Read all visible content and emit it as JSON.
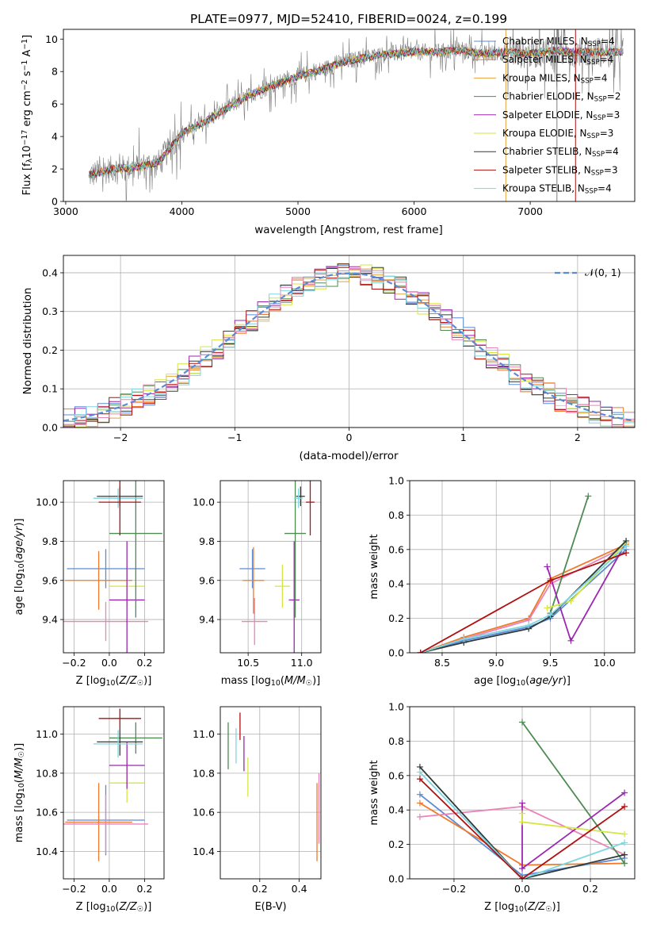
{
  "figure_title": "PLATE=0977, MJD=52410, FIBERID=0024, z=0.199",
  "colors": {
    "Chabrier MILES": "#5b8bd6",
    "Salpeter MILES": "#f07a2a",
    "Kroupa MILES": "#e7a23c",
    "Chabrier ELODIE": "#4e8a52",
    "Salpeter ELODIE": "#9b27b0",
    "Kroupa ELODIE": "#d6e640",
    "Chabrier STELIB": "#2f3b3b",
    "Salpeter STELIB": "#b01010",
    "Kroupa STELIB": "#7fd6e0",
    "pink": "#e983b8",
    "data": "#7f7f7f"
  },
  "chart_data": [
    {
      "id": "spectrum",
      "type": "line",
      "title": "PLATE=0977, MJD=52410, FIBERID=0024, z=0.199",
      "xlabel": "wavelength [Angstrom, rest frame]",
      "ylabel_parts": [
        "Flux [f",
        "λ",
        "10",
        "−17",
        " erg cm",
        "−2",
        " s",
        "−1",
        " A",
        "−1",
        "]"
      ],
      "xlim": [
        2980,
        7900
      ],
      "ylim": [
        0,
        10.6
      ],
      "xticks": [
        3000,
        4000,
        5000,
        6000,
        7000
      ],
      "yticks": [
        0,
        2,
        4,
        6,
        8,
        10
      ],
      "legend_position": "top-right",
      "legend": [
        {
          "name": "Chabrier MILES",
          "nssp": "4"
        },
        {
          "name": "Salpeter MILES",
          "nssp": "4"
        },
        {
          "name": "Kroupa MILES",
          "nssp": "4"
        },
        {
          "name": "Chabrier ELODIE",
          "nssp": "2"
        },
        {
          "name": "Salpeter ELODIE",
          "nssp": "3"
        },
        {
          "name": "Kroupa ELODIE",
          "nssp": "3"
        },
        {
          "name": "Chabrier STELIB",
          "nssp": "4"
        },
        {
          "name": "Salpeter STELIB",
          "nssp": "3"
        },
        {
          "name": "Kroupa STELIB",
          "nssp": "4"
        }
      ],
      "legend_prefix": ", N",
      "legend_sub": "SSP",
      "continuum": {
        "x": [
          3200,
          3400,
          3600,
          3800,
          4000,
          4200,
          4400,
          4600,
          4800,
          5000,
          5200,
          5400,
          5600,
          5800,
          6000,
          6200,
          6400,
          6600,
          6800,
          7000,
          7200,
          7400,
          7600
        ],
        "y": [
          1.6,
          2.0,
          2.1,
          2.4,
          4.2,
          4.9,
          5.8,
          6.6,
          7.2,
          7.7,
          8.1,
          8.6,
          8.9,
          9.1,
          9.2,
          9.2,
          9.3,
          9.1,
          9.2,
          9.1,
          9.3,
          9.2,
          9.2
        ]
      },
      "model_x_range": [
        3200,
        7800
      ],
      "data_x_range": [
        3200,
        7800
      ]
    },
    {
      "id": "residuals",
      "type": "histogram",
      "xlabel": "(data-model)/error",
      "ylabel": "Normed distribution",
      "xlim": [
        -2.5,
        2.5
      ],
      "ylim": [
        0,
        0.445
      ],
      "xticks": [
        -2,
        -1,
        0,
        1,
        2
      ],
      "xticklabels": [
        "−2",
        "−1",
        "0",
        "1",
        "2"
      ],
      "yticks": [
        0.0,
        0.1,
        0.2,
        0.3,
        0.4
      ],
      "yticklabels": [
        "0.0",
        "0.1",
        "0.2",
        "0.3",
        "0.4"
      ],
      "grid": true,
      "bin_width": 0.1,
      "reference": {
        "name": "𝒩(0, 1)",
        "mean": 0,
        "sigma": 1,
        "style": "dashed"
      },
      "legend_position": "top-right"
    },
    {
      "id": "age-vs-Z",
      "type": "errorbar",
      "xlabel": "Z [log10(Z/Z☉)]",
      "ylabel": "age  [log10(age/yr)]",
      "xlim": [
        -0.26,
        0.31
      ],
      "ylim": [
        9.23,
        10.11
      ],
      "xticks": [
        -0.2,
        0.0,
        0.2
      ],
      "xticklabels": [
        "−0.2",
        "0.0",
        "0.2"
      ],
      "yticks": [
        9.4,
        9.6,
        9.8,
        10.0
      ],
      "yticklabels": [
        "9.4",
        "9.6",
        "9.8",
        "10.0"
      ],
      "series": [
        {
          "color": "Chabrier MILES",
          "x": -0.02,
          "xerr": 0.22,
          "y": 9.66,
          "yerr": 0.1
        },
        {
          "color": "Salpeter MILES",
          "x": -0.06,
          "xerr": 0.19,
          "y": 9.6,
          "yerr": 0.15
        },
        {
          "color": "pink",
          "x": -0.02,
          "xerr": 0.24,
          "y": 9.39,
          "yerr": 0.1
        },
        {
          "color": "Kroupa ELODIE",
          "x": 0.1,
          "xerr": 0.1,
          "y": 9.57,
          "yerr": 0.1
        },
        {
          "color": "Salpeter ELODIE",
          "x": 0.1,
          "xerr": 0.1,
          "y": 9.5,
          "yerr": 0.3
        },
        {
          "color": "Chabrier ELODIE",
          "x": 0.15,
          "xerr": 0.15,
          "y": 9.84,
          "yerr": 0.43
        },
        {
          "color": "Chabrier STELIB",
          "x": 0.06,
          "xerr": 0.13,
          "y": 10.03,
          "yerr": 0.05
        },
        {
          "color": "Kroupa STELIB",
          "x": 0.05,
          "xerr": 0.14,
          "y": 10.02,
          "yerr": 0.05
        },
        {
          "color": "Salpeter STELIB",
          "x": 0.06,
          "xerr": 0.12,
          "y": 10.0,
          "yerr": 0.17
        }
      ]
    },
    {
      "id": "age-vs-mass",
      "type": "errorbar",
      "xlabel": "mass [log10(M/M☉)]",
      "ylabel": "",
      "xlim": [
        10.24,
        11.18
      ],
      "ylim": [
        9.23,
        10.11
      ],
      "xticks": [
        10.5,
        11.0
      ],
      "xticklabels": [
        "10.5",
        "11.0"
      ],
      "yticks": [
        9.4,
        9.6,
        9.8,
        10.0
      ],
      "yticklabels": [
        "9.4",
        "9.6",
        "9.8",
        "10.0"
      ],
      "series": [
        {
          "color": "Chabrier MILES",
          "x": 10.54,
          "xerr": 0.12,
          "y": 9.66,
          "yerr": 0.1
        },
        {
          "color": "Salpeter MILES",
          "x": 10.55,
          "xerr": 0.1,
          "y": 9.6,
          "yerr": 0.17
        },
        {
          "color": "pink",
          "x": 10.56,
          "xerr": 0.12,
          "y": 9.39,
          "yerr": 0.12
        },
        {
          "color": "Kroupa ELODIE",
          "x": 10.82,
          "xerr": 0.07,
          "y": 9.57,
          "yerr": 0.11
        },
        {
          "color": "Salpeter ELODIE",
          "x": 10.93,
          "xerr": 0.05,
          "y": 9.5,
          "yerr": 0.3
        },
        {
          "color": "Chabrier ELODIE",
          "x": 10.94,
          "xerr": 0.1,
          "y": 9.84,
          "yerr": 0.43
        },
        {
          "color": "Chabrier STELIB",
          "x": 10.99,
          "xerr": 0.04,
          "y": 10.03,
          "yerr": 0.05
        },
        {
          "color": "Kroupa STELIB",
          "x": 10.97,
          "xerr": 0.04,
          "y": 10.02,
          "yerr": 0.05
        },
        {
          "color": "Salpeter STELIB",
          "x": 11.08,
          "xerr": 0.04,
          "y": 10.0,
          "yerr": 0.17
        }
      ]
    },
    {
      "id": "mass-weight-vs-age",
      "type": "line",
      "xlabel": "age  [log10(age/yr)]",
      "ylabel": "mass weight",
      "xlim": [
        8.2,
        10.28
      ],
      "ylim": [
        0,
        1
      ],
      "xticks": [
        8.5,
        9.0,
        9.5,
        10.0
      ],
      "xticklabels": [
        "8.5",
        "9.0",
        "9.5",
        "10.0"
      ],
      "yticks": [
        0.0,
        0.2,
        0.4,
        0.6,
        0.8,
        1.0
      ],
      "yticklabels": [
        "0.0",
        "0.2",
        "0.4",
        "0.6",
        "0.8",
        "1.0"
      ],
      "series": [
        {
          "color": "Chabrier MILES",
          "x": [
            8.3,
            8.7,
            9.3,
            9.5,
            10.2
          ],
          "y": [
            0.0,
            0.07,
            0.15,
            0.2,
            0.6
          ]
        },
        {
          "color": "Salpeter MILES",
          "x": [
            8.3,
            8.7,
            9.3,
            9.5,
            10.2
          ],
          "y": [
            0.0,
            0.09,
            0.2,
            0.43,
            0.63
          ]
        },
        {
          "color": "pink",
          "x": [
            8.3,
            8.7,
            9.3,
            9.5,
            10.2
          ],
          "y": [
            0.0,
            0.08,
            0.19,
            0.4,
            0.62
          ]
        },
        {
          "color": "Chabrier ELODIE",
          "x": [
            9.5,
            9.85
          ],
          "y": [
            0.23,
            0.91
          ]
        },
        {
          "color": "Salpeter ELODIE",
          "x": [
            9.47,
            9.69,
            10.2
          ],
          "y": [
            0.5,
            0.07,
            0.64
          ]
        },
        {
          "color": "Kroupa ELODIE",
          "x": [
            9.47,
            9.69,
            10.2
          ],
          "y": [
            0.26,
            0.3,
            0.64
          ]
        },
        {
          "color": "Chabrier STELIB",
          "x": [
            8.3,
            8.7,
            9.3,
            9.5,
            10.2
          ],
          "y": [
            0.0,
            0.06,
            0.14,
            0.21,
            0.65
          ]
        },
        {
          "color": "Kroupa STELIB",
          "x": [
            8.3,
            8.7,
            9.3,
            9.5,
            10.2
          ],
          "y": [
            0.0,
            0.08,
            0.16,
            0.22,
            0.62
          ]
        },
        {
          "color": "Salpeter STELIB",
          "x": [
            8.3,
            9.5,
            10.2
          ],
          "y": [
            0.0,
            0.42,
            0.58
          ]
        }
      ]
    },
    {
      "id": "mass-vs-Z",
      "type": "errorbar",
      "xlabel": "Z [log10(Z/Z☉)]",
      "ylabel": "mass [log10(M/M☉)]",
      "xlim": [
        -0.26,
        0.31
      ],
      "ylim": [
        10.26,
        11.14
      ],
      "xticks": [
        -0.2,
        0.0,
        0.2
      ],
      "xticklabels": [
        "−0.2",
        "0.0",
        "0.2"
      ],
      "yticks": [
        10.4,
        10.6,
        10.8,
        11.0
      ],
      "yticklabels": [
        "10.4",
        "10.6",
        "10.8",
        "11.0"
      ],
      "series": [
        {
          "color": "Chabrier MILES",
          "x": -0.02,
          "xerr": 0.22,
          "y": 10.56,
          "yerr": 0.18
        },
        {
          "color": "Salpeter MILES",
          "x": -0.06,
          "xerr": 0.19,
          "y": 10.55,
          "yerr": 0.2
        },
        {
          "color": "pink",
          "x": -0.02,
          "xerr": 0.24,
          "y": 10.54,
          "yerr": 0.15
        },
        {
          "color": "Kroupa ELODIE",
          "x": 0.1,
          "xerr": 0.1,
          "y": 10.75,
          "yerr": 0.1
        },
        {
          "color": "Salpeter ELODIE",
          "x": 0.1,
          "xerr": 0.1,
          "y": 10.84,
          "yerr": 0.12
        },
        {
          "color": "Chabrier ELODIE",
          "x": 0.15,
          "xerr": 0.15,
          "y": 10.98,
          "yerr": 0.08
        },
        {
          "color": "Chabrier STELIB",
          "x": 0.06,
          "xerr": 0.13,
          "y": 10.96,
          "yerr": 0.07
        },
        {
          "color": "Kroupa STELIB",
          "x": 0.05,
          "xerr": 0.14,
          "y": 10.95,
          "yerr": 0.07
        },
        {
          "color": "Salpeter STELIB",
          "x": 0.06,
          "xerr": 0.12,
          "y": 11.08,
          "yerr": 0.05
        }
      ]
    },
    {
      "id": "mass-vs-ebv",
      "type": "errorbar",
      "xlabel": "E(B-V)",
      "ylabel": "",
      "xlim": [
        0.0,
        0.51
      ],
      "ylim": [
        10.26,
        11.14
      ],
      "xticks": [
        0.2,
        0.4
      ],
      "xticklabels": [
        "0.2",
        "0.4"
      ],
      "yticks": [
        10.4,
        10.6,
        10.8,
        11.0
      ],
      "yticklabels": [
        "10.4",
        "10.6",
        "10.8",
        "11.0"
      ],
      "series": [
        {
          "color": "Chabrier ELODIE",
          "x": 0.04,
          "xerr": 0.0,
          "y": 10.94,
          "yerr": 0.12
        },
        {
          "color": "Kroupa STELIB",
          "x": 0.08,
          "xerr": 0.0,
          "y": 10.94,
          "yerr": 0.09
        },
        {
          "color": "Salpeter STELIB",
          "x": 0.1,
          "xerr": 0.0,
          "y": 11.04,
          "yerr": 0.07
        },
        {
          "color": "Salpeter ELODIE",
          "x": 0.12,
          "xerr": 0.0,
          "y": 10.9,
          "yerr": 0.09
        },
        {
          "color": "Kroupa ELODIE",
          "x": 0.14,
          "xerr": 0.0,
          "y": 10.78,
          "yerr": 0.1
        },
        {
          "color": "Salpeter MILES",
          "x": 0.49,
          "xerr": 0.0,
          "y": 10.55,
          "yerr": 0.2
        },
        {
          "color": "pink",
          "x": 0.5,
          "xerr": 0.0,
          "y": 10.62,
          "yerr": 0.18
        }
      ]
    },
    {
      "id": "mass-weight-vs-Z",
      "type": "line",
      "xlabel": "Z [log10(Z/Z☉)]",
      "ylabel": "mass weight",
      "xlim": [
        -0.33,
        0.33
      ],
      "ylim": [
        0,
        1
      ],
      "xticks": [
        -0.2,
        0.0,
        0.2
      ],
      "xticklabels": [
        "−0.2",
        "0.0",
        "0.2"
      ],
      "yticks": [
        0.0,
        0.2,
        0.4,
        0.6,
        0.8,
        1.0
      ],
      "yticklabels": [
        "0.0",
        "0.2",
        "0.4",
        "0.6",
        "0.8",
        "1.0"
      ],
      "series": [
        {
          "color": "Chabrier MILES",
          "x": [
            -0.3,
            0.0,
            0.3
          ],
          "y": [
            0.49,
            0.02,
            0.12
          ]
        },
        {
          "color": "Salpeter MILES",
          "x": [
            -0.3,
            0.0,
            0.3
          ],
          "y": [
            0.44,
            0.08,
            0.09
          ]
        },
        {
          "color": "pink",
          "x": [
            -0.3,
            0.0,
            0.3
          ],
          "y": [
            0.36,
            0.42,
            0.14
          ]
        },
        {
          "color": "Chabrier ELODIE",
          "x": [
            0.0,
            0.3
          ],
          "y": [
            0.91,
            0.09
          ]
        },
        {
          "color": "Salpeter ELODIE",
          "x": [
            0.0,
            0.0,
            0.3
          ],
          "y": [
            0.44,
            0.06,
            0.5
          ]
        },
        {
          "color": "Kroupa ELODIE",
          "x": [
            0.0,
            0.0,
            0.3
          ],
          "y": [
            0.38,
            0.33,
            0.26
          ]
        },
        {
          "color": "Chabrier STELIB",
          "x": [
            -0.3,
            0.0,
            0.3
          ],
          "y": [
            0.65,
            0.0,
            0.14
          ]
        },
        {
          "color": "Kroupa STELIB",
          "x": [
            -0.3,
            0.0,
            0.3
          ],
          "y": [
            0.62,
            0.0,
            0.21
          ]
        },
        {
          "color": "Salpeter STELIB",
          "x": [
            -0.3,
            0.0,
            0.3
          ],
          "y": [
            0.58,
            0.0,
            0.42
          ]
        }
      ]
    }
  ]
}
